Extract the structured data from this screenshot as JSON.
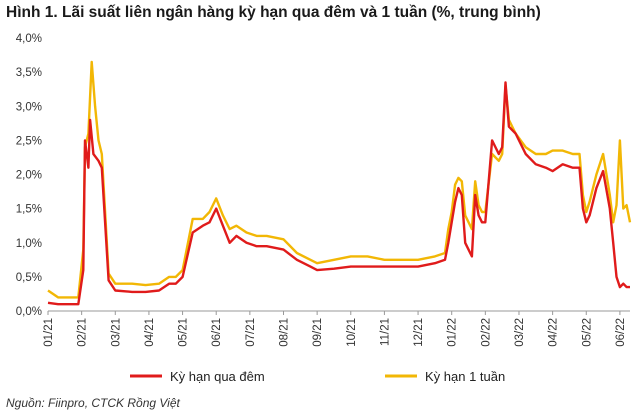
{
  "title": "Hình 1. Lãi suất liên ngân hàng kỳ hạn qua đêm và 1 tuần (%, trung bình)",
  "source": "Nguồn: Fiinpro, CTCK Rồng Việt",
  "colors": {
    "overnight": "#e01b1b",
    "week": "#f2b705",
    "axis": "#999999"
  },
  "chart_data": {
    "type": "line",
    "title": "Hình 1. Lãi suất liên ngân hàng kỳ hạn qua đêm và 1 tuần (%, trung bình)",
    "xlabel": "",
    "ylabel": "",
    "ylim": [
      0,
      4.0
    ],
    "y_ticks": [
      "0,0%",
      "0,5%",
      "1,0%",
      "1,5%",
      "2,0%",
      "2,5%",
      "3,0%",
      "3,5%",
      "4,0%"
    ],
    "x_ticks": [
      "01/21",
      "02/21",
      "03/21",
      "04/21",
      "05/21",
      "06/21",
      "07/21",
      "08/21",
      "09/21",
      "10/21",
      "11/21",
      "12/21",
      "01/22",
      "02/22",
      "03/22",
      "04/22",
      "05/22",
      "06/22"
    ],
    "x_domain": [
      0,
      17.3
    ],
    "legend_position": "bottom",
    "grid": false,
    "series": [
      {
        "name": "Kỳ hạn qua đêm",
        "x": [
          0,
          0.3,
          0.6,
          0.9,
          1.05,
          1.1,
          1.2,
          1.25,
          1.35,
          1.5,
          1.6,
          1.8,
          2.0,
          2.5,
          2.9,
          3.3,
          3.6,
          3.8,
          4.0,
          4.3,
          4.6,
          4.8,
          5.0,
          5.2,
          5.4,
          5.6,
          5.9,
          6.2,
          6.5,
          7.0,
          7.4,
          7.8,
          8.0,
          8.5,
          9.0,
          9.5,
          10.0,
          10.5,
          11.0,
          11.5,
          11.8,
          11.9,
          12.0,
          12.1,
          12.2,
          12.3,
          12.4,
          12.6,
          12.7,
          12.8,
          12.9,
          13.0,
          13.2,
          13.4,
          13.5,
          13.6,
          13.7,
          13.9,
          14.2,
          14.5,
          14.8,
          15.0,
          15.3,
          15.6,
          15.8,
          15.9,
          16.0,
          16.1,
          16.2,
          16.3,
          16.5,
          16.7,
          16.8,
          16.9,
          17.0,
          17.1,
          17.2,
          17.3
        ],
        "values": [
          0.12,
          0.1,
          0.1,
          0.1,
          0.6,
          2.5,
          2.1,
          2.8,
          2.3,
          2.2,
          2.1,
          0.45,
          0.3,
          0.28,
          0.28,
          0.3,
          0.4,
          0.4,
          0.5,
          1.15,
          1.25,
          1.3,
          1.5,
          1.25,
          1.0,
          1.1,
          1.0,
          0.95,
          0.95,
          0.9,
          0.75,
          0.65,
          0.6,
          0.62,
          0.65,
          0.65,
          0.65,
          0.65,
          0.65,
          0.7,
          0.75,
          1.0,
          1.3,
          1.6,
          1.8,
          1.7,
          1.0,
          0.8,
          1.7,
          1.4,
          1.3,
          1.3,
          2.5,
          2.3,
          2.4,
          3.35,
          2.7,
          2.6,
          2.3,
          2.15,
          2.1,
          2.05,
          2.15,
          2.1,
          2.1,
          1.5,
          1.3,
          1.4,
          1.6,
          1.8,
          2.05,
          1.5,
          1.0,
          0.5,
          0.35,
          0.4,
          0.35,
          0.35
        ]
      },
      {
        "name": "Kỳ hạn 1 tuần",
        "x": [
          0,
          0.3,
          0.6,
          0.9,
          1.05,
          1.1,
          1.2,
          1.3,
          1.4,
          1.5,
          1.6,
          1.8,
          2.0,
          2.5,
          2.9,
          3.3,
          3.6,
          3.8,
          4.0,
          4.3,
          4.6,
          4.8,
          5.0,
          5.2,
          5.4,
          5.6,
          5.9,
          6.2,
          6.5,
          7.0,
          7.4,
          7.8,
          8.0,
          8.5,
          9.0,
          9.5,
          10.0,
          10.5,
          11.0,
          11.5,
          11.8,
          11.9,
          12.0,
          12.1,
          12.2,
          12.3,
          12.4,
          12.6,
          12.7,
          12.8,
          12.9,
          13.0,
          13.2,
          13.4,
          13.5,
          13.6,
          13.7,
          13.9,
          14.2,
          14.5,
          14.8,
          15.0,
          15.3,
          15.6,
          15.8,
          15.9,
          16.0,
          16.1,
          16.2,
          16.3,
          16.5,
          16.7,
          16.8,
          16.9,
          17.0,
          17.1,
          17.2,
          17.3
        ],
        "values": [
          0.3,
          0.2,
          0.2,
          0.2,
          0.9,
          2.4,
          2.6,
          3.65,
          3.0,
          2.5,
          2.3,
          0.55,
          0.4,
          0.4,
          0.38,
          0.4,
          0.5,
          0.5,
          0.6,
          1.35,
          1.35,
          1.45,
          1.65,
          1.4,
          1.2,
          1.25,
          1.15,
          1.1,
          1.1,
          1.05,
          0.85,
          0.75,
          0.7,
          0.75,
          0.8,
          0.8,
          0.75,
          0.75,
          0.75,
          0.8,
          0.85,
          1.2,
          1.45,
          1.85,
          1.95,
          1.9,
          1.4,
          1.2,
          1.9,
          1.55,
          1.45,
          1.45,
          2.3,
          2.2,
          2.3,
          3.3,
          2.8,
          2.6,
          2.4,
          2.3,
          2.3,
          2.35,
          2.35,
          2.3,
          2.3,
          1.7,
          1.45,
          1.6,
          1.8,
          2.0,
          2.3,
          1.7,
          1.3,
          1.55,
          2.5,
          1.5,
          1.55,
          1.3
        ]
      }
    ]
  }
}
